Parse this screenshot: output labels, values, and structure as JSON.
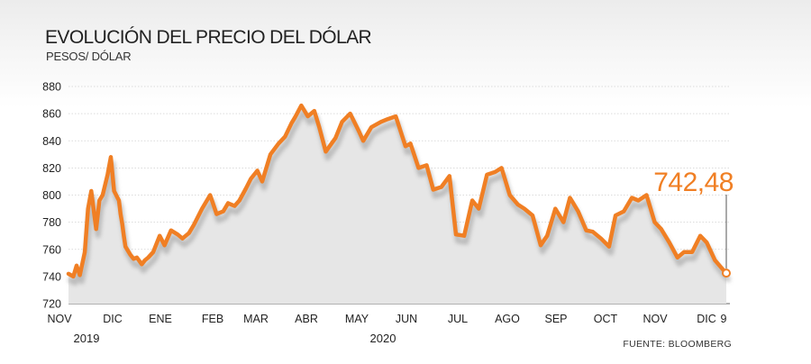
{
  "chart_data": {
    "type": "line",
    "title": "EVOLUCIÓN DEL PRECIO DEL DÓLAR",
    "subtitle": "PESOS/ DÓLAR",
    "ylabel": "PESOS/ DÓLAR",
    "ylim": [
      720,
      880
    ],
    "yticks": [
      "720",
      "740",
      "760",
      "780",
      "800",
      "820",
      "840",
      "860",
      "880"
    ],
    "xticks": [
      "NOV",
      "DIC",
      "ENE",
      "FEB",
      "MAR",
      "ABR",
      "MAY",
      "JUN",
      "JUL",
      "AGO",
      "SEP",
      "OCT",
      "NOV",
      "DIC",
      "9"
    ],
    "years": [
      "2019",
      "2020"
    ],
    "source": "FUENTE: BLOOMBERG",
    "last_value_label": "742,48",
    "grid": true,
    "line_color": "#f07f24",
    "series": [
      {
        "x": [
          "2019-11-01",
          "2019-11-04",
          "2019-11-06",
          "2019-11-08",
          "2019-11-11",
          "2019-11-13",
          "2019-11-15",
          "2019-11-18",
          "2019-11-20",
          "2019-11-22",
          "2019-11-25",
          "2019-11-27",
          "2019-11-29",
          "2019-12-02",
          "2019-12-03",
          "2019-12-04",
          "2019-12-05",
          "2019-12-06",
          "2019-12-09",
          "2019-12-11",
          "2019-12-13",
          "2019-12-16",
          "2019-12-18",
          "2019-12-20",
          "2019-12-23",
          "2019-12-27",
          "2019-12-30",
          "2020-01-03",
          "2020-01-07",
          "2020-01-10",
          "2020-01-14",
          "2020-01-17",
          "2020-01-22",
          "2020-01-27",
          "2020-01-31",
          "2020-02-04",
          "2020-02-07",
          "2020-02-11",
          "2020-02-14",
          "2020-02-18",
          "2020-02-21",
          "2020-02-25",
          "2020-02-28",
          "2020-03-04",
          "2020-03-09",
          "2020-03-13",
          "2020-03-17",
          "2020-03-19",
          "2020-03-23",
          "2020-03-27",
          "2020-03-31",
          "2020-04-03",
          "2020-04-07",
          "2020-04-13",
          "2020-04-17",
          "2020-04-22",
          "2020-04-27",
          "2020-04-30",
          "2020-05-05",
          "2020-05-11",
          "2020-05-15",
          "2020-05-20",
          "2020-05-26",
          "2020-05-29",
          "2020-06-03",
          "2020-06-08",
          "2020-06-12",
          "2020-06-17",
          "2020-06-22",
          "2020-06-26",
          "2020-07-01",
          "2020-07-06",
          "2020-07-10",
          "2020-07-15",
          "2020-07-20",
          "2020-07-24",
          "2020-07-29",
          "2020-08-03",
          "2020-08-07",
          "2020-08-12",
          "2020-08-17",
          "2020-08-21",
          "2020-08-26",
          "2020-08-31",
          "2020-09-04",
          "2020-09-09",
          "2020-09-14",
          "2020-09-18",
          "2020-09-23",
          "2020-09-28",
          "2020-10-02",
          "2020-10-07",
          "2020-10-12",
          "2020-10-16",
          "2020-10-21",
          "2020-10-26",
          "2020-10-30",
          "2020-11-04",
          "2020-11-09",
          "2020-11-13",
          "2020-11-18",
          "2020-11-23",
          "2020-11-27",
          "2020-12-02",
          "2020-12-07",
          "2020-12-09"
        ],
        "values": [
          742,
          740,
          748,
          741,
          758,
          790,
          803,
          775,
          796,
          800,
          815,
          828,
          803,
          796,
          786,
          779,
          770,
          762,
          756,
          753,
          754,
          749,
          752,
          754,
          758,
          770,
          763,
          774,
          771,
          768,
          772,
          778,
          790,
          800,
          786,
          788,
          794,
          792,
          796,
          805,
          812,
          818,
          810,
          830,
          838,
          843,
          853,
          857,
          866,
          858,
          862,
          850,
          832,
          842,
          854,
          860,
          848,
          840,
          850,
          854,
          856,
          858,
          836,
          838,
          820,
          822,
          804,
          806,
          814,
          771,
          770,
          796,
          790,
          815,
          817,
          820,
          800,
          793,
          790,
          785,
          763,
          770,
          790,
          780,
          798,
          788,
          774,
          773,
          768,
          762,
          785,
          788,
          798,
          796,
          800,
          780,
          775,
          765,
          754,
          758,
          758,
          770,
          765,
          752,
          745,
          742.48
        ]
      }
    ]
  }
}
